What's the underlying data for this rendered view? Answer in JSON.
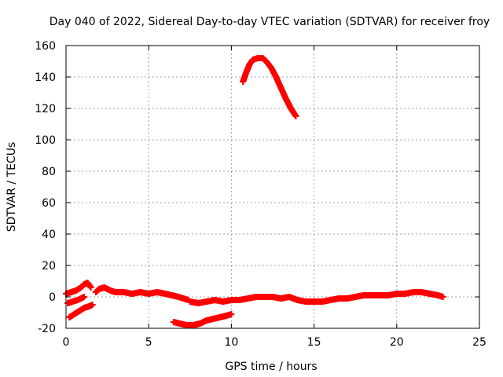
{
  "chart_data": {
    "type": "scatter",
    "title": "Day 040 of 2022, Sidereal Day-to-day VTEC variation (SDTVAR) for receiver froy",
    "xlabel": "GPS time / hours",
    "ylabel": "SDTVAR / TECUs",
    "xlim": [
      0,
      25
    ],
    "ylim": [
      -20,
      160
    ],
    "xticks": [
      "0",
      "5",
      "10",
      "15",
      "20",
      "25"
    ],
    "yticks": [
      "-20",
      "0",
      "20",
      "40",
      "60",
      "80",
      "100",
      "120",
      "140",
      "160"
    ],
    "grid": true,
    "legend": "none",
    "marker_color": "#ff0000",
    "series": [
      {
        "x": [
          0.0,
          0.3,
          0.6,
          0.9,
          1.1,
          1.3,
          1.5
        ],
        "y": [
          2,
          3,
          4,
          6,
          8,
          9,
          6
        ]
      },
      {
        "x": [
          0.1,
          0.4,
          0.7,
          0.9,
          1.1
        ],
        "y": [
          -4,
          -3,
          -2,
          -1,
          0
        ]
      },
      {
        "x": [
          0.2,
          0.5,
          0.8,
          1.1,
          1.4,
          1.6
        ],
        "y": [
          -13,
          -11,
          -9,
          -7,
          -6,
          -5
        ]
      },
      {
        "x": [
          1.8,
          2.0,
          2.3,
          2.7,
          3.0,
          3.5,
          4.0,
          4.5,
          5.0,
          5.5,
          6.0,
          6.4,
          6.8,
          7.1,
          7.4
        ],
        "y": [
          3,
          5,
          6,
          4,
          3,
          3,
          2,
          3,
          2,
          3,
          2,
          1,
          0,
          -1,
          -2
        ]
      },
      {
        "x": [
          7.5,
          8.0,
          8.5,
          9.0,
          9.5,
          10.0,
          10.5,
          11.0,
          11.5,
          12.0,
          12.5,
          13.0,
          13.5,
          14.0
        ],
        "y": [
          -3,
          -4,
          -3,
          -2,
          -3,
          -2,
          -2,
          -1,
          0,
          0,
          0,
          -1,
          0,
          -2
        ]
      },
      {
        "x": [
          6.5,
          6.9,
          7.3,
          7.7,
          8.1,
          8.5,
          8.9,
          9.3,
          9.7,
          10.0
        ],
        "y": [
          -16,
          -17,
          -18,
          -18,
          -17,
          -15,
          -14,
          -13,
          -12,
          -11
        ]
      },
      {
        "x": [
          10.7,
          10.9,
          11.1,
          11.3,
          11.6,
          11.9,
          12.1,
          12.4,
          12.7,
          13.0,
          13.3,
          13.6,
          13.9
        ],
        "y": [
          137,
          143,
          148,
          151,
          152,
          152,
          150,
          146,
          140,
          133,
          126,
          120,
          115
        ]
      },
      {
        "x": [
          14.0,
          14.5,
          15.0,
          15.5,
          16.0,
          16.5,
          17.0,
          17.5,
          18.0,
          18.5,
          19.0,
          19.5,
          20.0,
          20.5,
          21.0,
          21.5,
          22.0,
          22.5,
          22.8
        ],
        "y": [
          -2,
          -3,
          -3,
          -3,
          -2,
          -1,
          -1,
          0,
          1,
          1,
          1,
          1,
          2,
          2,
          3,
          3,
          2,
          1,
          0
        ]
      }
    ]
  }
}
